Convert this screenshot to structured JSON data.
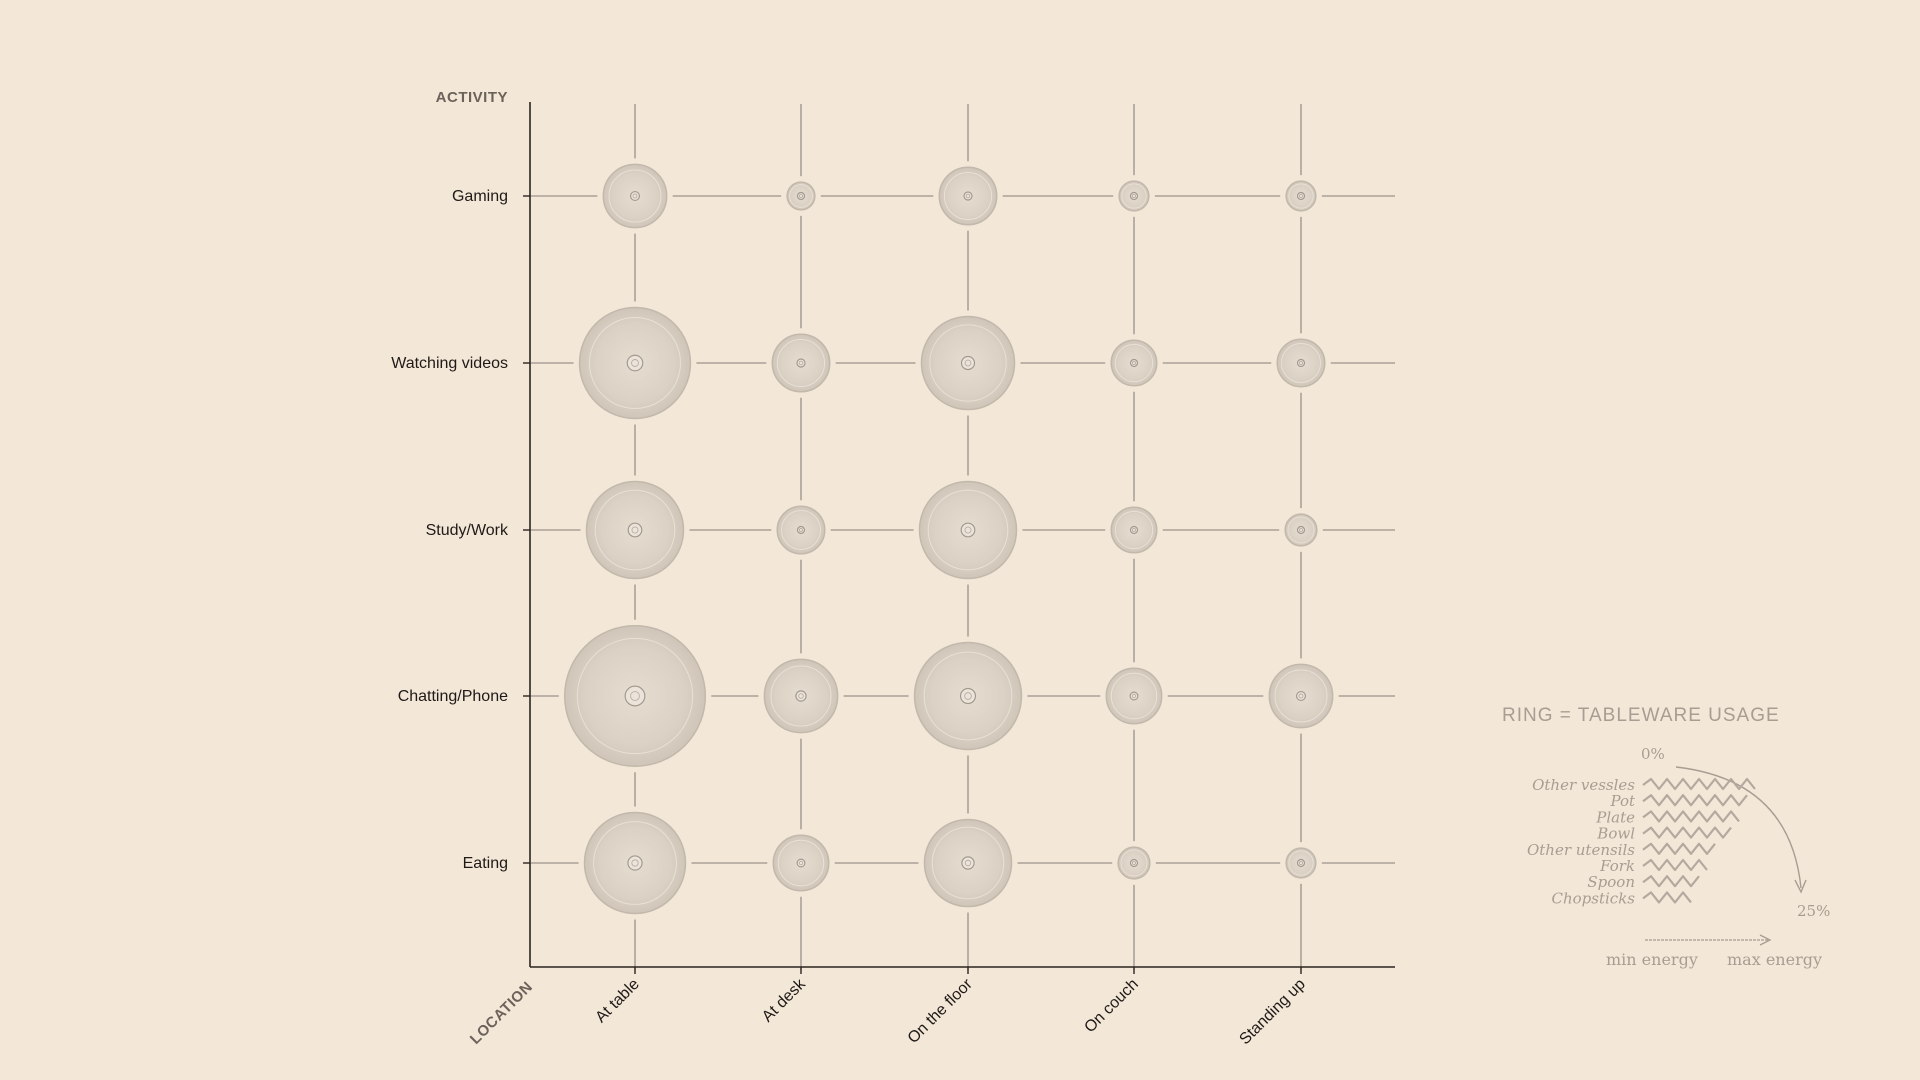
{
  "chart_data": {
    "type": "scatter",
    "encoding": "bubble",
    "y_axis_title": "ACTIVITY",
    "x_axis_title": "LOCATION",
    "activities": [
      "Gaming",
      "Watching videos",
      "Study/Work",
      "Chatting/Phone",
      "Eating"
    ],
    "locations": [
      "At table",
      "At desk",
      "On the floor",
      "On couch",
      "Standing up"
    ],
    "values": [
      [
        32,
        14,
        29,
        15,
        15
      ],
      [
        56,
        29,
        47,
        23,
        24
      ],
      [
        49,
        24,
        49,
        23,
        16
      ],
      [
        71,
        37,
        54,
        28,
        32
      ],
      [
        51,
        28,
        44,
        16,
        15
      ]
    ],
    "legend": {
      "title": "RING = TABLEWARE USAGE",
      "start_label": "0%",
      "end_label": "25%",
      "items": [
        "Other vessles",
        "Pot",
        "Plate",
        "Bowl",
        "Other utensils",
        "Fork",
        "Spoon",
        "Chopsticks"
      ],
      "min_label": "min energy",
      "max_label": "max energy"
    },
    "colors": {
      "background": "#f3e7d8",
      "bubble": "#ddd3c6",
      "bubble_edge": "#c2b8ab",
      "grid": "#9a928a",
      "axis": "#2b2520",
      "legend": "#a79d92"
    }
  }
}
